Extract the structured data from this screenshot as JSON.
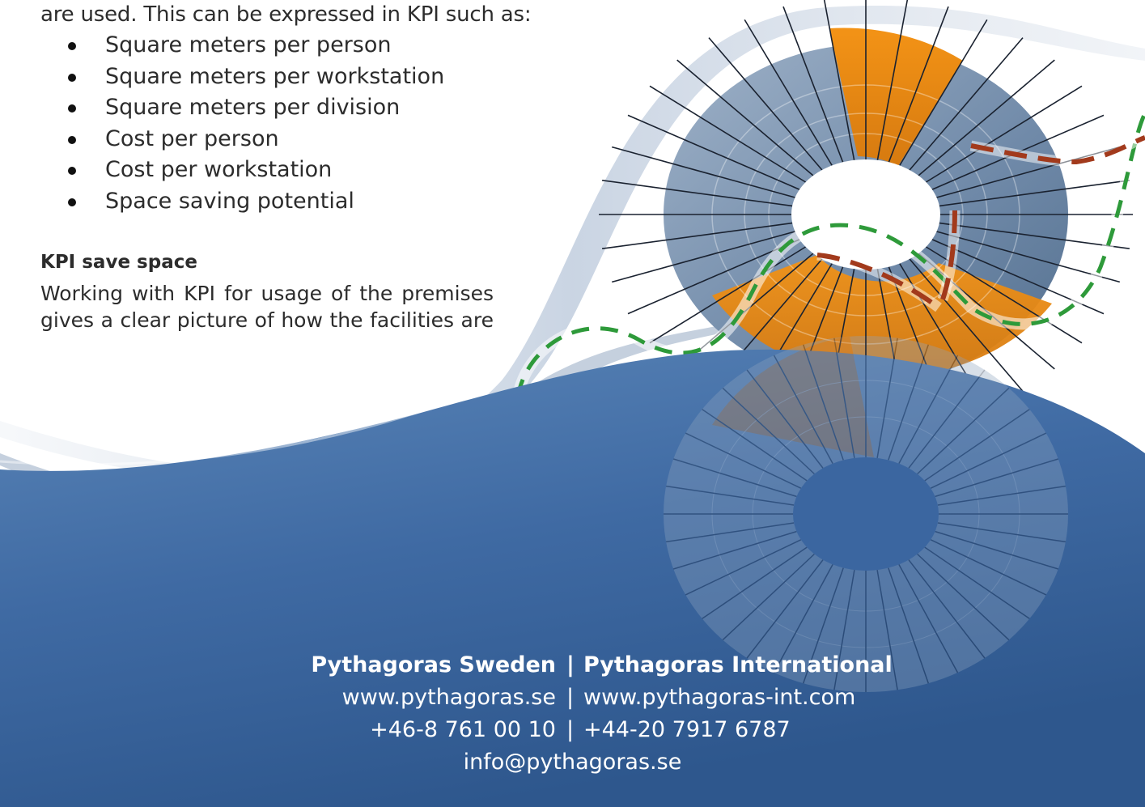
{
  "intro": "are used. This can be expressed in KPI such as:",
  "kpi_items": [
    "Square meters per person",
    "Square meters per workstation",
    "Square meters per division",
    "Cost per person",
    "Cost per workstation",
    "Space saving potential"
  ],
  "section": {
    "heading": "KPI save space",
    "lines": [
      "Working with KPI for usage of the premises",
      "gives a clear picture of how the facilities are"
    ]
  },
  "footer": {
    "separator": "|",
    "sweden": {
      "name": "Pythagoras Sweden",
      "web": "www.pythagoras.se",
      "phone": "+46-8 761 00 10"
    },
    "international": {
      "name": "Pythagoras International",
      "web": "www.pythagoras-int.com",
      "phone": "+44-20 7917 6787"
    },
    "email": "info@pythagoras.se"
  },
  "colors": {
    "wave_blue": "#3f6aa3",
    "wave_dark": "#2e578d",
    "disc_blue": "#6f89a8",
    "disc_orange": "#e98a16",
    "path_green": "#2e9a3a",
    "path_red": "#a23a1c",
    "text": "#2c2c2c"
  }
}
